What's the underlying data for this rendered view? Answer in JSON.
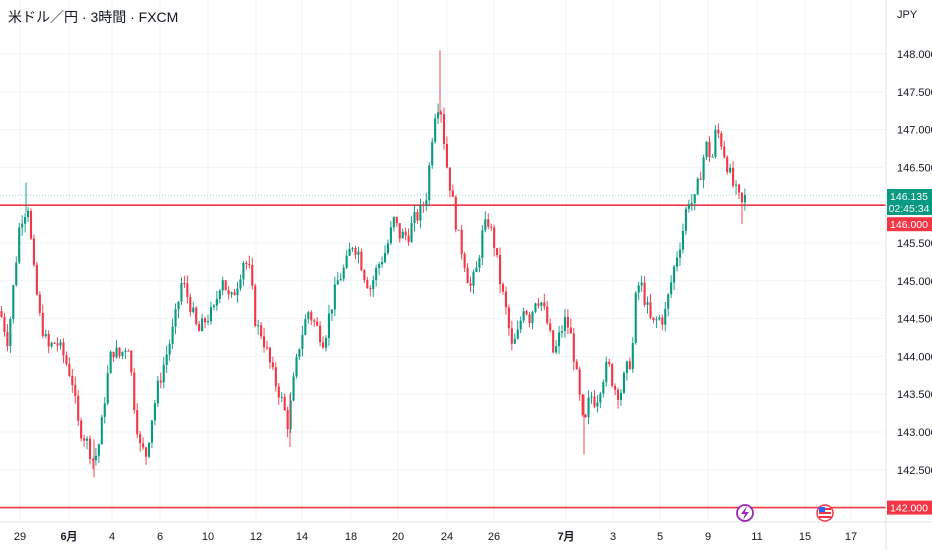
{
  "header": {
    "title": "米ドル／円 · 3時間 · FXCM",
    "currency": "JPY"
  },
  "colors": {
    "up": "#089981",
    "down": "#f23645",
    "level_line": "#f23645",
    "grid": "#f0f3fa",
    "axis_text": "#131722",
    "current_price_tag": "#089981"
  },
  "price_tags": {
    "current_price": "146.135",
    "countdown": "02:45:34",
    "level_upper": "146.000",
    "level_lower": "142.000"
  },
  "events": [
    {
      "icon": "lightning-icon",
      "date": "7/10"
    },
    {
      "icon": "us-flag-icon",
      "date": "7/16"
    }
  ],
  "chart_data": {
    "type": "candlestick",
    "title": "米ドル／円 · 3時間 · FXCM",
    "y_unit": "JPY",
    "ylim": [
      141.85,
      148.3
    ],
    "y_ticks": [
      "148.000",
      "147.500",
      "147.000",
      "146.500",
      "146.000",
      "145.500",
      "145.000",
      "144.500",
      "144.000",
      "143.500",
      "143.000",
      "142.500",
      "142.000"
    ],
    "x_ticks": [
      {
        "label": "29",
        "bold": false
      },
      {
        "label": "6月",
        "bold": true
      },
      {
        "label": "4",
        "bold": false
      },
      {
        "label": "6",
        "bold": false
      },
      {
        "label": "10",
        "bold": false
      },
      {
        "label": "12",
        "bold": false
      },
      {
        "label": "14",
        "bold": false
      },
      {
        "label": "18",
        "bold": false
      },
      {
        "label": "20",
        "bold": false
      },
      {
        "label": "24",
        "bold": false
      },
      {
        "label": "26",
        "bold": false
      },
      {
        "label": "7月",
        "bold": true
      },
      {
        "label": "3",
        "bold": false
      },
      {
        "label": "5",
        "bold": false
      },
      {
        "label": "9",
        "bold": false
      },
      {
        "label": "11",
        "bold": false
      },
      {
        "label": "15",
        "bold": false
      },
      {
        "label": "17",
        "bold": false
      }
    ],
    "horizontal_levels": [
      146.0,
      142.0
    ],
    "current_price": 146.135,
    "close_path": [
      [
        0,
        144.6
      ],
      [
        8,
        144.2
      ],
      [
        14,
        145.0
      ],
      [
        20,
        145.8
      ],
      [
        28,
        146.0
      ],
      [
        33,
        145.2
      ],
      [
        40,
        144.5
      ],
      [
        48,
        144.1
      ],
      [
        56,
        144.2
      ],
      [
        64,
        144.0
      ],
      [
        72,
        143.7
      ],
      [
        78,
        143.1
      ],
      [
        86,
        142.9
      ],
      [
        94,
        142.6
      ],
      [
        100,
        142.9
      ],
      [
        106,
        143.6
      ],
      [
        112,
        144.1
      ],
      [
        120,
        144.0
      ],
      [
        128,
        144.2
      ],
      [
        134,
        143.4
      ],
      [
        140,
        142.8
      ],
      [
        146,
        142.7
      ],
      [
        152,
        143.2
      ],
      [
        158,
        143.6
      ],
      [
        166,
        144.0
      ],
      [
        174,
        144.4
      ],
      [
        182,
        145.0
      ],
      [
        190,
        144.7
      ],
      [
        198,
        144.3
      ],
      [
        206,
        144.5
      ],
      [
        214,
        144.6
      ],
      [
        222,
        145.1
      ],
      [
        230,
        144.7
      ],
      [
        238,
        145.0
      ],
      [
        244,
        145.3
      ],
      [
        250,
        145.1
      ],
      [
        256,
        144.4
      ],
      [
        262,
        144.3
      ],
      [
        268,
        144.0
      ],
      [
        274,
        143.7
      ],
      [
        280,
        143.5
      ],
      [
        288,
        143.1
      ],
      [
        294,
        143.7
      ],
      [
        300,
        144.2
      ],
      [
        308,
        144.6
      ],
      [
        316,
        144.4
      ],
      [
        324,
        144.2
      ],
      [
        330,
        144.6
      ],
      [
        338,
        145.0
      ],
      [
        346,
        145.2
      ],
      [
        352,
        145.5
      ],
      [
        358,
        145.4
      ],
      [
        364,
        145.1
      ],
      [
        370,
        144.9
      ],
      [
        378,
        145.2
      ],
      [
        386,
        145.4
      ],
      [
        394,
        145.8
      ],
      [
        400,
        145.6
      ],
      [
        408,
        145.6
      ],
      [
        414,
        145.8
      ],
      [
        420,
        145.9
      ],
      [
        426,
        146.1
      ],
      [
        430,
        146.6
      ],
      [
        434,
        147.2
      ],
      [
        440,
        147.4
      ],
      [
        446,
        146.6
      ],
      [
        452,
        146.1
      ],
      [
        458,
        145.6
      ],
      [
        464,
        145.3
      ],
      [
        470,
        144.9
      ],
      [
        476,
        145.1
      ],
      [
        482,
        145.6
      ],
      [
        488,
        145.8
      ],
      [
        494,
        145.5
      ],
      [
        500,
        145.0
      ],
      [
        506,
        144.6
      ],
      [
        512,
        144.1
      ],
      [
        518,
        144.3
      ],
      [
        524,
        144.7
      ],
      [
        530,
        144.5
      ],
      [
        536,
        144.8
      ],
      [
        542,
        144.7
      ],
      [
        548,
        144.4
      ],
      [
        554,
        144.0
      ],
      [
        560,
        144.3
      ],
      [
        566,
        144.5
      ],
      [
        572,
        144.2
      ],
      [
        578,
        143.6
      ],
      [
        584,
        143.0
      ],
      [
        590,
        143.5
      ],
      [
        596,
        143.4
      ],
      [
        602,
        143.7
      ],
      [
        608,
        143.9
      ],
      [
        614,
        143.6
      ],
      [
        620,
        143.5
      ],
      [
        626,
        143.8
      ],
      [
        632,
        144.0
      ],
      [
        636,
        144.8
      ],
      [
        640,
        145.0
      ],
      [
        646,
        144.7
      ],
      [
        652,
        144.4
      ],
      [
        658,
        144.5
      ],
      [
        664,
        144.5
      ],
      [
        670,
        144.9
      ],
      [
        676,
        145.3
      ],
      [
        682,
        145.6
      ],
      [
        688,
        146.1
      ],
      [
        694,
        146.0
      ],
      [
        700,
        146.4
      ],
      [
        706,
        146.8
      ],
      [
        712,
        146.6
      ],
      [
        716,
        147.0
      ],
      [
        720,
        146.9
      ],
      [
        726,
        146.6
      ],
      [
        732,
        146.3
      ],
      [
        738,
        146.1
      ],
      [
        742,
        146.0
      ],
      [
        746,
        146.135
      ]
    ]
  }
}
